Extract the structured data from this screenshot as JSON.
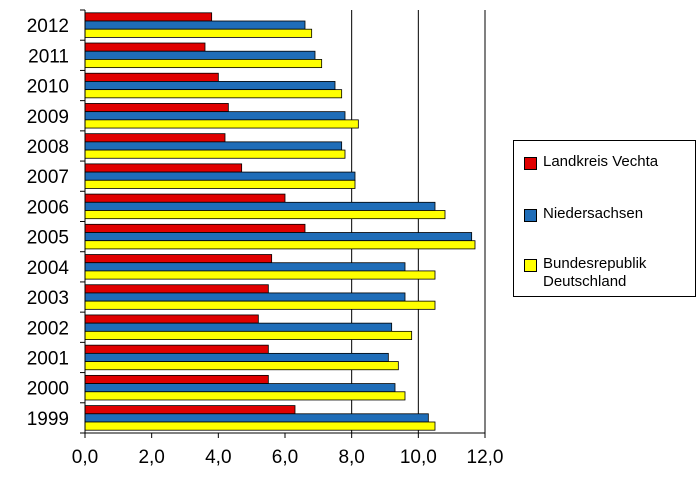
{
  "chart_data": {
    "type": "bar",
    "orientation": "horizontal",
    "categories": [
      "2012",
      "2011",
      "2010",
      "2009",
      "2008",
      "2007",
      "2006",
      "2005",
      "2004",
      "2003",
      "2002",
      "2001",
      "2000",
      "1999"
    ],
    "series": [
      {
        "name": "Landkreis Vechta",
        "color": "#e00000",
        "values": [
          3.8,
          3.6,
          4.0,
          4.3,
          4.2,
          4.7,
          6.0,
          6.6,
          5.6,
          5.5,
          5.2,
          5.5,
          5.5,
          6.3
        ]
      },
      {
        "name": "Niedersachsen",
        "color": "#1f6db8",
        "values": [
          6.6,
          6.9,
          7.5,
          7.8,
          7.7,
          8.1,
          10.5,
          11.6,
          9.6,
          9.6,
          9.2,
          9.1,
          9.3,
          10.3
        ]
      },
      {
        "name": "Bundesrepublik\nDeutschland",
        "color": "#ffff00",
        "values": [
          6.8,
          7.1,
          7.7,
          8.2,
          7.8,
          8.1,
          10.8,
          11.7,
          10.5,
          10.5,
          9.8,
          9.4,
          9.6,
          10.5
        ]
      }
    ],
    "xticks": [
      "0,0",
      "2,0",
      "4,0",
      "6,0",
      "8,0",
      "10,0",
      "12,0"
    ],
    "xlim": [
      0,
      12
    ],
    "grid": "vertical lines at 8,0 10,0 12,0",
    "legend_position": "right"
  }
}
